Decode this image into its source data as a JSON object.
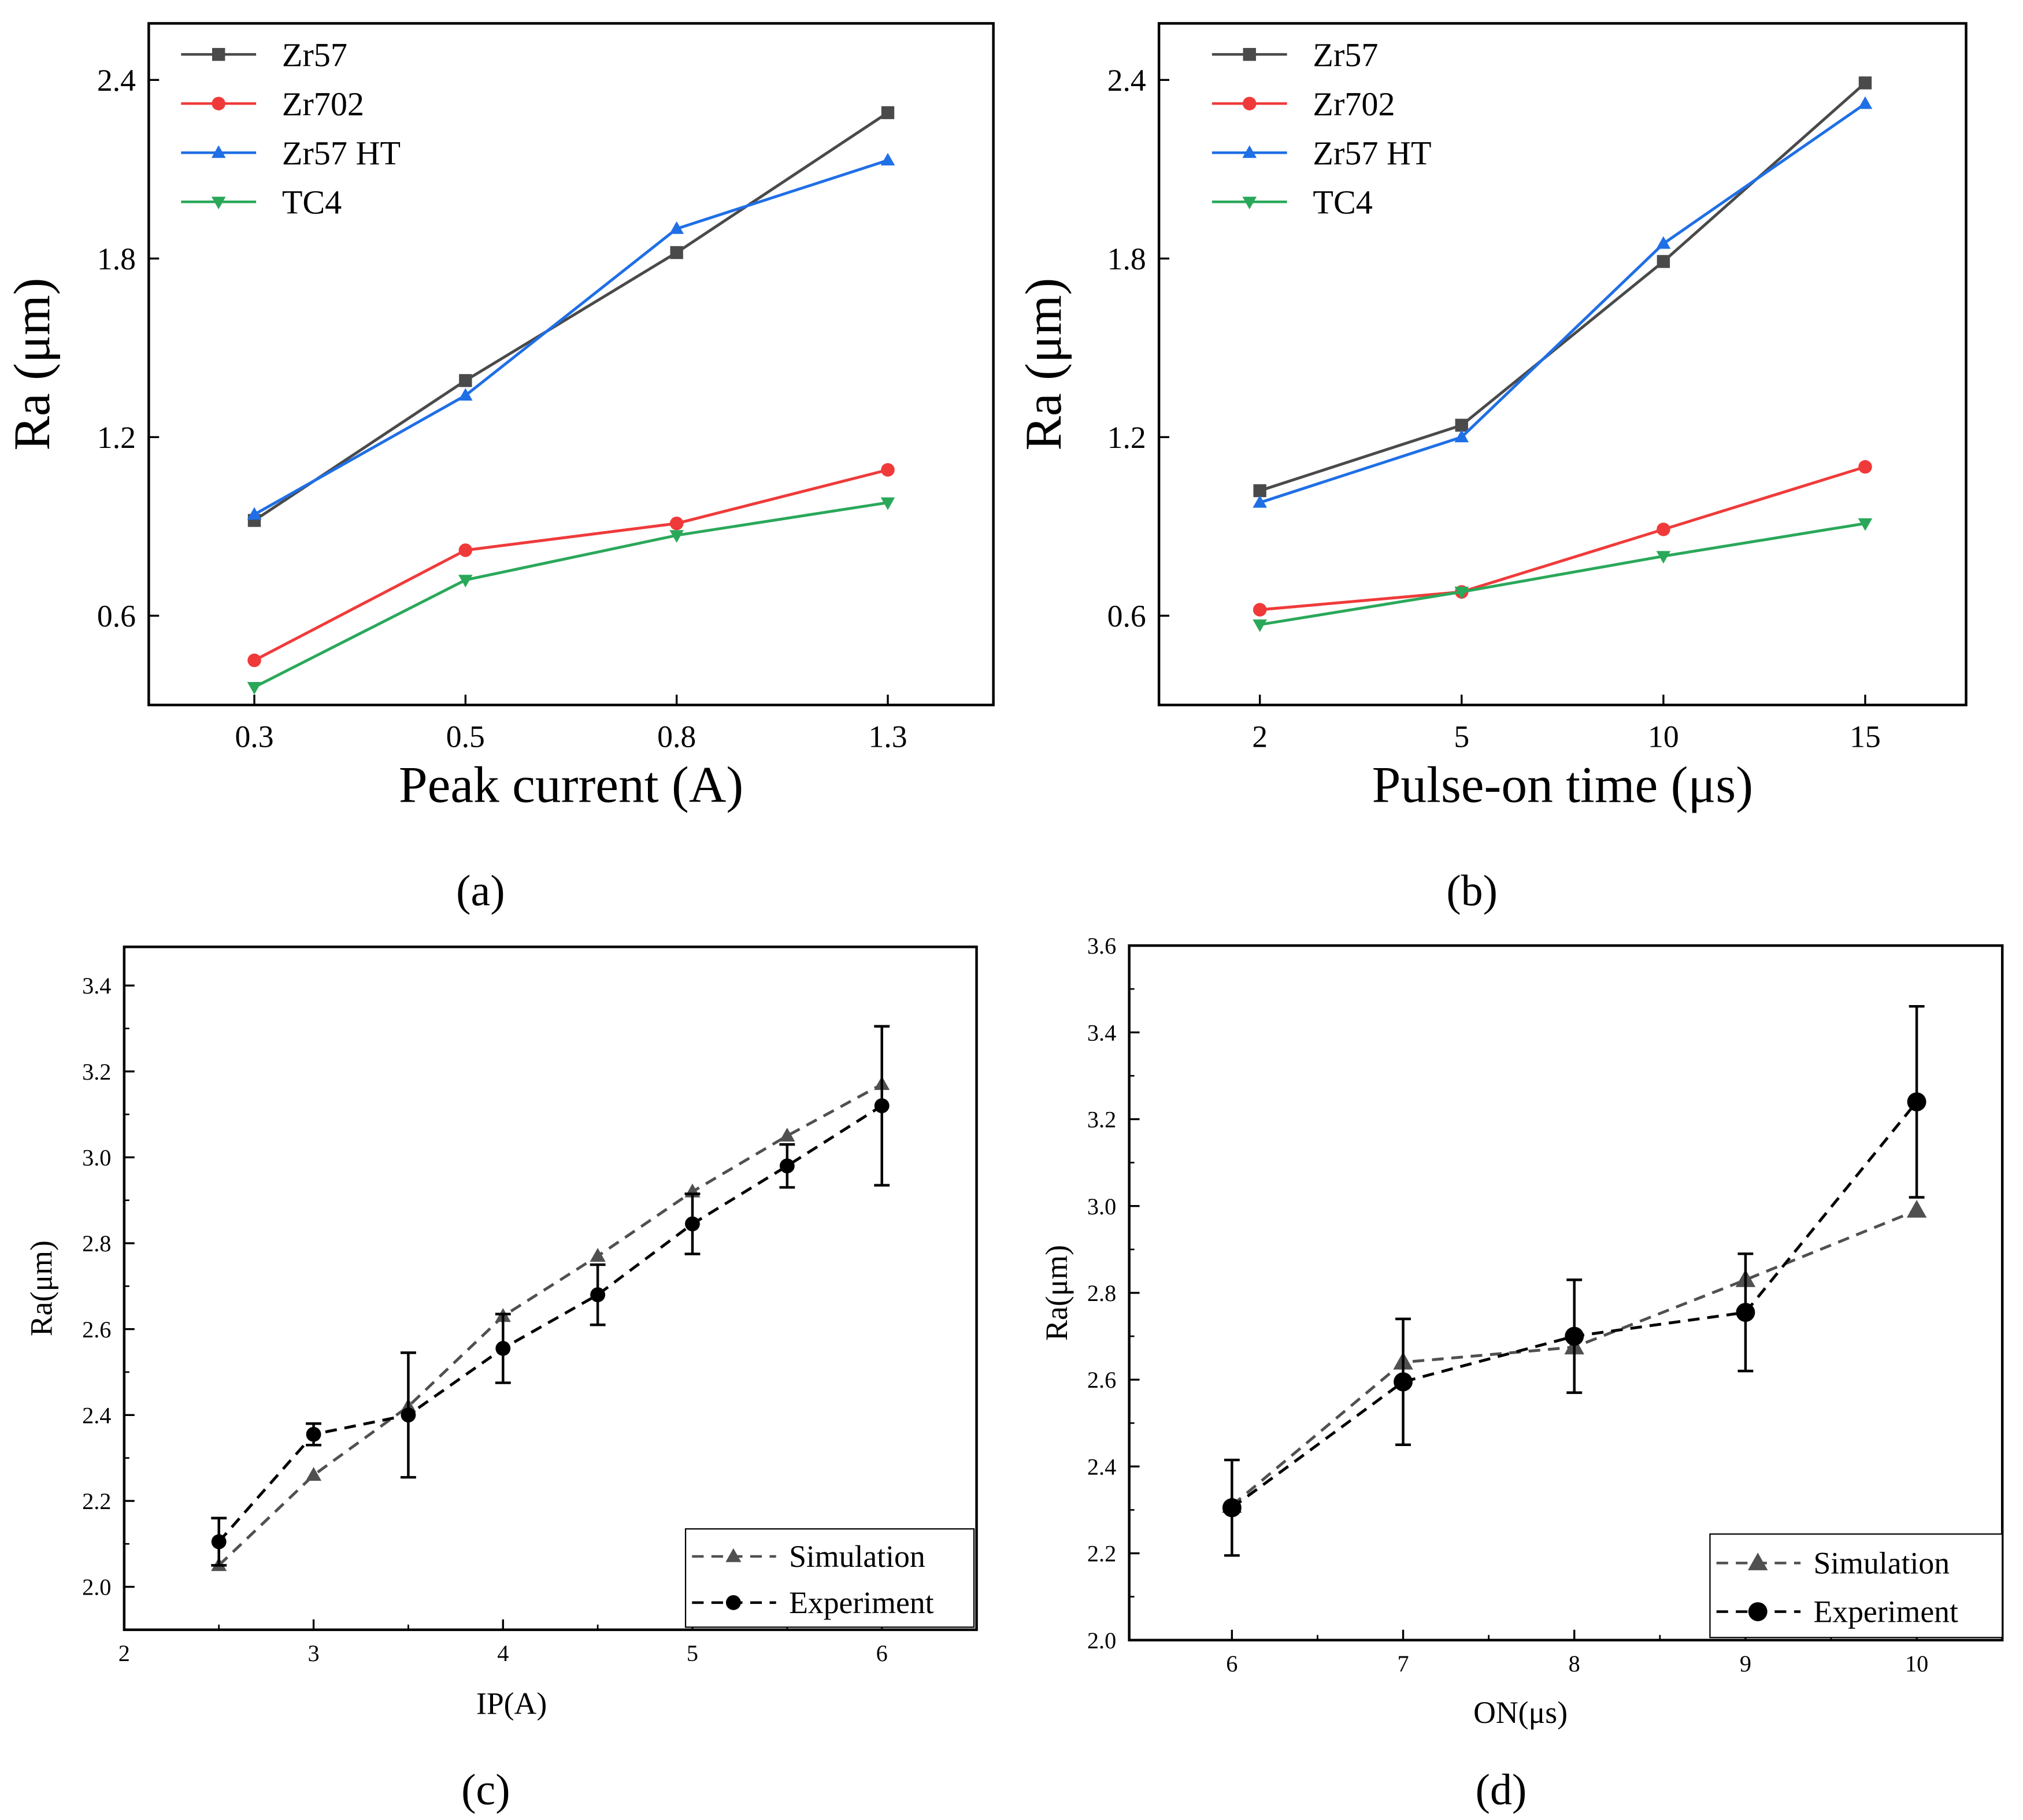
{
  "colors": {
    "Zr57": "#4a4a4a",
    "Zr702": "#f03a3a",
    "Zr57 HT": "#1f6fe6",
    "TC4": "#2aa85a",
    "Simulation": "#505050",
    "Experiment": "#000000"
  },
  "chart_data": [
    {
      "panel_label": "(a)",
      "type": "line",
      "categories": [
        "0.3",
        "0.5",
        "0.8",
        "1.3"
      ],
      "xlabel": "Peak current (A)",
      "ylabel": "Ra (μm)",
      "ylim": [
        0.3,
        2.59
      ],
      "yticks": [
        0.6,
        1.2,
        1.8,
        2.4
      ],
      "legend": "top-left",
      "series": [
        {
          "name": "Zr57",
          "marker": "square",
          "values": [
            0.92,
            1.39,
            1.82,
            2.29
          ]
        },
        {
          "name": "Zr702",
          "marker": "circle",
          "values": [
            0.45,
            0.82,
            0.91,
            1.09
          ]
        },
        {
          "name": "Zr57 HT",
          "marker": "triangle-up",
          "values": [
            0.94,
            1.34,
            1.9,
            2.13
          ]
        },
        {
          "name": "TC4",
          "marker": "triangle-down",
          "values": [
            0.36,
            0.72,
            0.87,
            0.98
          ]
        }
      ]
    },
    {
      "panel_label": "(b)",
      "type": "line",
      "categories": [
        "2",
        "5",
        "10",
        "15"
      ],
      "xlabel": "Pulse-on time (μs)",
      "ylabel": "Ra (μm)",
      "ylim": [
        0.3,
        2.59
      ],
      "yticks": [
        0.6,
        1.2,
        1.8,
        2.4
      ],
      "legend": "top-left",
      "series": [
        {
          "name": "Zr57",
          "marker": "square",
          "values": [
            1.02,
            1.24,
            1.79,
            2.39
          ]
        },
        {
          "name": "Zr702",
          "marker": "circle",
          "values": [
            0.62,
            0.68,
            0.89,
            1.1
          ]
        },
        {
          "name": "Zr57 HT",
          "marker": "triangle-up",
          "values": [
            0.98,
            1.2,
            1.85,
            2.32
          ]
        },
        {
          "name": "TC4",
          "marker": "triangle-down",
          "values": [
            0.57,
            0.68,
            0.8,
            0.91
          ]
        }
      ]
    },
    {
      "panel_label": "(c)",
      "type": "line",
      "xlabel": "IP(A)",
      "ylabel": "Ra(μm)",
      "xlim": [
        2,
        6.5
      ],
      "ylim": [
        1.9,
        3.49
      ],
      "xticks": [
        2,
        3,
        4,
        5,
        6
      ],
      "yticks": [
        2.0,
        2.2,
        2.4,
        2.6,
        2.8,
        3.0,
        3.2,
        3.4
      ],
      "legend": "bottom-right",
      "series": [
        {
          "name": "Simulation",
          "marker": "triangle-up",
          "dashed": true,
          "x": [
            2.5,
            3,
            3.5,
            4,
            4.5,
            5,
            5.5,
            6
          ],
          "values": [
            2.05,
            2.26,
            2.42,
            2.63,
            2.77,
            2.92,
            3.05,
            3.17
          ]
        },
        {
          "name": "Experiment",
          "marker": "circle",
          "dashed": true,
          "x": [
            2.5,
            3,
            3.5,
            4,
            4.5,
            5,
            5.5,
            6
          ],
          "values": [
            2.105,
            2.355,
            2.4,
            2.555,
            2.68,
            2.845,
            2.98,
            3.12
          ],
          "error": [
            0.055,
            0.025,
            0.145,
            0.08,
            0.07,
            0.07,
            0.05,
            0.185
          ]
        }
      ]
    },
    {
      "panel_label": "(d)",
      "type": "line",
      "xlabel": "ON(μs)",
      "ylabel": "Ra(μm)",
      "xlim": [
        5.4,
        10.5
      ],
      "ylim": [
        2.0,
        3.6
      ],
      "xticks": [
        6,
        7,
        8,
        9,
        10
      ],
      "yticks": [
        2.0,
        2.2,
        2.4,
        2.6,
        2.8,
        3.0,
        3.2,
        3.4,
        3.6
      ],
      "legend": "bottom-right",
      "series": [
        {
          "name": "Simulation",
          "marker": "triangle-up",
          "dashed": true,
          "x": [
            6,
            7,
            8,
            9,
            10
          ],
          "values": [
            2.31,
            2.64,
            2.675,
            2.83,
            2.99
          ]
        },
        {
          "name": "Experiment",
          "marker": "circle",
          "dashed": true,
          "x": [
            6,
            7,
            8,
            9,
            10
          ],
          "values": [
            2.305,
            2.595,
            2.7,
            2.755,
            3.24
          ],
          "error": [
            0.11,
            0.145,
            0.13,
            0.135,
            0.22
          ]
        }
      ]
    }
  ]
}
